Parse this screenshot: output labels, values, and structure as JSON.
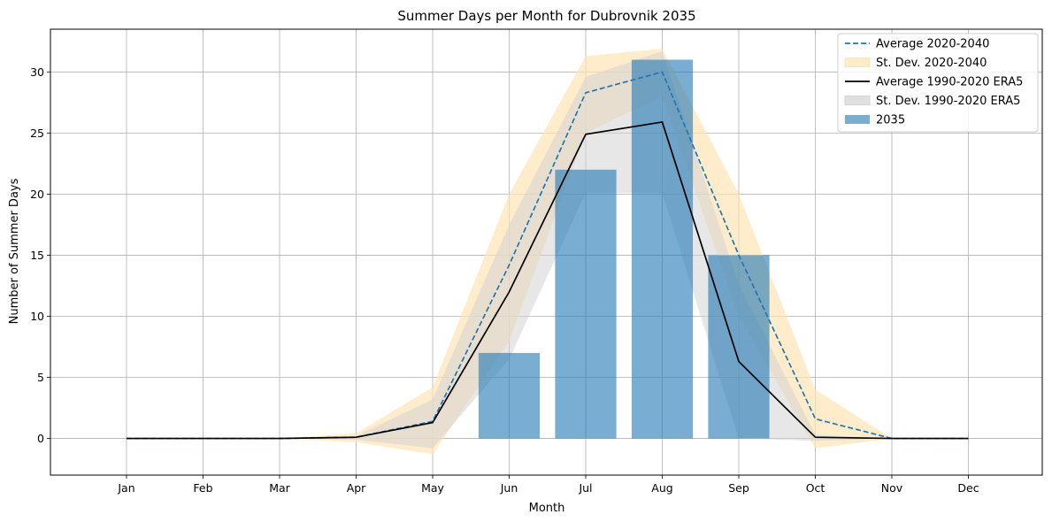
{
  "chart_data": {
    "type": "bar",
    "title": "Summer Days per Month for Dubrovnik 2035",
    "xlabel": "Month",
    "ylabel": "Number of Summer Days",
    "categories": [
      "Jan",
      "Feb",
      "Mar",
      "Apr",
      "May",
      "Jun",
      "Jul",
      "Aug",
      "Sep",
      "Oct",
      "Nov",
      "Dec"
    ],
    "ylim": [
      -3,
      33.5
    ],
    "yticks": [
      0,
      5,
      10,
      15,
      20,
      25,
      30
    ],
    "grid": true,
    "legend_position": "top-right",
    "series": [
      {
        "name": "Average 2020-2040",
        "kind": "line",
        "style": "dashed",
        "color": "#1f77b4",
        "values": [
          0,
          0,
          0,
          0.1,
          1.4,
          14.2,
          28.3,
          30.0,
          15.0,
          1.6,
          0.0,
          0.0
        ]
      },
      {
        "name": "St. Dev. 2020-2040",
        "kind": "band",
        "color": "#ffe4b5",
        "lower": [
          0,
          0,
          0,
          -0.3,
          -1.3,
          8.0,
          25.0,
          28.0,
          10.0,
          -0.8,
          0,
          0
        ],
        "upper": [
          0,
          0,
          0,
          0.4,
          4.2,
          20.0,
          31.3,
          31.9,
          20.0,
          4.0,
          0,
          0
        ]
      },
      {
        "name": "Average 1990-2020 ERA5",
        "kind": "line",
        "style": "solid",
        "color": "#000000",
        "values": [
          0,
          0,
          0,
          0.1,
          1.3,
          12.0,
          24.9,
          25.9,
          6.3,
          0.1,
          0.0,
          0.0
        ]
      },
      {
        "name": "St. Dev. 1990-2020 ERA5",
        "kind": "band",
        "color": "#d3d3d3",
        "lower": [
          0,
          0,
          0,
          -0.1,
          -0.8,
          6.5,
          20.1,
          20.1,
          0.0,
          -0.2,
          0,
          0
        ],
        "upper": [
          0,
          0,
          0,
          0.2,
          3.2,
          17.5,
          29.6,
          31.7,
          12.6,
          0.3,
          0,
          0
        ]
      },
      {
        "name": "2035",
        "kind": "bar",
        "color": "#1f77b4",
        "values": [
          0,
          0,
          0,
          0,
          0,
          7,
          22,
          31,
          15,
          0,
          0,
          0
        ]
      }
    ]
  }
}
